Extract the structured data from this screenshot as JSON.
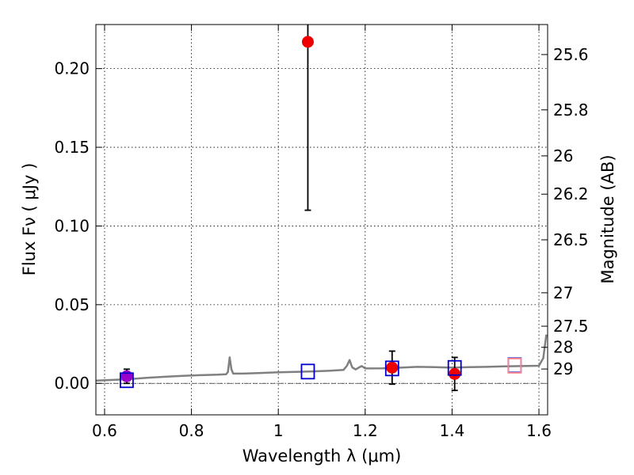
{
  "chart_data": {
    "type": "scatter",
    "xlabel": "Wavelength  λ (μm)",
    "ylabel": "Flux  Fν  ( μJy )",
    "y2label": "Magnitude (AB)",
    "xlim": [
      0.58,
      1.62
    ],
    "ylim": [
      -0.02,
      0.228
    ],
    "xticks": [
      0.6,
      0.8,
      1.0,
      1.2,
      1.4,
      1.6
    ],
    "xtick_labels": [
      "0.6",
      "0.8",
      "1",
      "1.2",
      "1.4",
      "1.6"
    ],
    "yticks": [
      0.0,
      0.05,
      0.1,
      0.15,
      0.2
    ],
    "ytick_labels": [
      "0.00",
      "0.05",
      "0.10",
      "0.15",
      "0.20"
    ],
    "y2ticks": [
      {
        "value": 25.6,
        "label": "25.6"
      },
      {
        "value": 25.8,
        "label": "25.8"
      },
      {
        "value": 26,
        "label": "26"
      },
      {
        "value": 26.2,
        "label": "26.2"
      },
      {
        "value": 26.5,
        "label": "26.5"
      },
      {
        "value": 27,
        "label": "27"
      },
      {
        "value": 27.5,
        "label": "27.5"
      },
      {
        "value": 28,
        "label": "28"
      },
      {
        "value": 29,
        "label": "29"
      }
    ],
    "grid": true,
    "zero_line": 0.0,
    "series": [
      {
        "marker": "circle",
        "color": "#ee0000",
        "points": [
          {
            "x": 0.651,
            "y": 0.0045,
            "yerr_low": 0.0045,
            "yerr_high": 0.0045,
            "color": "#9900cc"
          },
          {
            "x": 1.068,
            "y": 0.217,
            "yerr_low": 0.107,
            "yerr_high": 0.2
          },
          {
            "x": 1.262,
            "y": 0.01,
            "yerr_low": 0.0105,
            "yerr_high": 0.0105
          },
          {
            "x": 1.406,
            "y": 0.006,
            "yerr_low": 0.0105,
            "yerr_high": 0.0105
          }
        ]
      },
      {
        "marker": "open-square",
        "color": "#0000cc",
        "points": [
          {
            "x": 0.651,
            "y": 0.002
          },
          {
            "x": 1.068,
            "y": 0.0075
          },
          {
            "x": 1.262,
            "y": 0.0095
          },
          {
            "x": 1.406,
            "y": 0.0098
          },
          {
            "x": 1.544,
            "y": 0.0115
          }
        ]
      },
      {
        "marker": "open-square",
        "color": "#ff8888",
        "points": [
          {
            "x": 1.544,
            "y": 0.0112
          }
        ]
      },
      {
        "type": "line",
        "color": "#808080",
        "points": [
          {
            "x": 0.58,
            "y": 0.0018
          },
          {
            "x": 0.62,
            "y": 0.0022
          },
          {
            "x": 0.66,
            "y": 0.0028
          },
          {
            "x": 0.7,
            "y": 0.0036
          },
          {
            "x": 0.74,
            "y": 0.0042
          },
          {
            "x": 0.78,
            "y": 0.0048
          },
          {
            "x": 0.82,
            "y": 0.0052
          },
          {
            "x": 0.86,
            "y": 0.0055
          },
          {
            "x": 0.88,
            "y": 0.0058
          },
          {
            "x": 0.884,
            "y": 0.0072
          },
          {
            "x": 0.888,
            "y": 0.0165
          },
          {
            "x": 0.892,
            "y": 0.009
          },
          {
            "x": 0.896,
            "y": 0.0062
          },
          {
            "x": 0.92,
            "y": 0.0062
          },
          {
            "x": 0.96,
            "y": 0.0066
          },
          {
            "x": 1.0,
            "y": 0.007
          },
          {
            "x": 1.04,
            "y": 0.0073
          },
          {
            "x": 1.08,
            "y": 0.0076
          },
          {
            "x": 1.12,
            "y": 0.008
          },
          {
            "x": 1.15,
            "y": 0.0085
          },
          {
            "x": 1.158,
            "y": 0.0112
          },
          {
            "x": 1.164,
            "y": 0.0148
          },
          {
            "x": 1.17,
            "y": 0.0102
          },
          {
            "x": 1.178,
            "y": 0.0088
          },
          {
            "x": 1.185,
            "y": 0.01
          },
          {
            "x": 1.192,
            "y": 0.011
          },
          {
            "x": 1.2,
            "y": 0.0095
          },
          {
            "x": 1.24,
            "y": 0.0096
          },
          {
            "x": 1.28,
            "y": 0.01
          },
          {
            "x": 1.32,
            "y": 0.0105
          },
          {
            "x": 1.36,
            "y": 0.0103
          },
          {
            "x": 1.4,
            "y": 0.01
          },
          {
            "x": 1.44,
            "y": 0.0103
          },
          {
            "x": 1.48,
            "y": 0.0105
          },
          {
            "x": 1.52,
            "y": 0.0108
          },
          {
            "x": 1.56,
            "y": 0.011
          },
          {
            "x": 1.6,
            "y": 0.0112
          },
          {
            "x": 1.61,
            "y": 0.016
          },
          {
            "x": 1.617,
            "y": 0.031
          }
        ]
      }
    ]
  }
}
